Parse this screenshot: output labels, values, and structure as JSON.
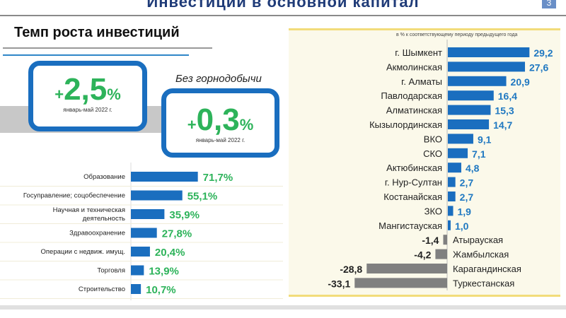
{
  "slide": {
    "title": "Инвестиции в основной капитал",
    "page": "3"
  },
  "section": {
    "title": "Темп роста инвестиций"
  },
  "kpi": [
    {
      "sign": "+",
      "value": "2,5",
      "unit": "%",
      "period": "январь-май 2022 г."
    },
    {
      "caption": "Без горнодобычи",
      "sign": "+",
      "value": "0,3",
      "unit": "%",
      "period": "январь-май 2022 г."
    }
  ],
  "colors": {
    "blue": "#1a6ebf",
    "green": "#2db35a",
    "gray": "#808080",
    "value_blue": "#1f78c1"
  },
  "chart_data": [
    {
      "type": "bar",
      "orientation": "horizontal",
      "categories": [
        "Образование",
        "Госуправление; соцобеспечение",
        "Научная и техническая деятельность",
        "Здравоохранение",
        "Операции с недвиж. имущ.",
        "Торговля",
        "Строительство"
      ],
      "values": [
        71.7,
        55.1,
        35.9,
        27.8,
        20.4,
        13.9,
        10.7
      ],
      "labels": [
        "71,7%",
        "55,1%",
        "35,9%",
        "27,8%",
        "20,4%",
        "13,9%",
        "10,7%"
      ]
    },
    {
      "type": "bar",
      "orientation": "horizontal",
      "subtitle": "в % к соответствующему периоду предыдущего года",
      "categories": [
        "г. Шымкент",
        "Акмолинская",
        "г. Алматы",
        "Павлодарская",
        "Алматинская",
        "Кызылординская",
        "ВКО",
        "СКО",
        "Актюбинская",
        "г. Нур-Султан",
        "Костанайская",
        "ЗКО",
        "Мангистауская",
        "Атырауская",
        "Жамбылская",
        "Карагандинская",
        "Туркестанская"
      ],
      "values": [
        29.2,
        27.6,
        20.9,
        16.4,
        15.3,
        14.7,
        9.1,
        7.1,
        4.8,
        2.7,
        2.7,
        1.9,
        1.0,
        -1.4,
        -4.2,
        -28.8,
        -33.1
      ],
      "labels": [
        "29,2",
        "27,6",
        "20,9",
        "16,4",
        "15,3",
        "14,7",
        "9,1",
        "7,1",
        "4,8",
        "2,7",
        "2,7",
        "1,9",
        "1,0",
        "-1,4",
        "-4,2",
        "-28,8",
        "-33,1"
      ]
    }
  ]
}
